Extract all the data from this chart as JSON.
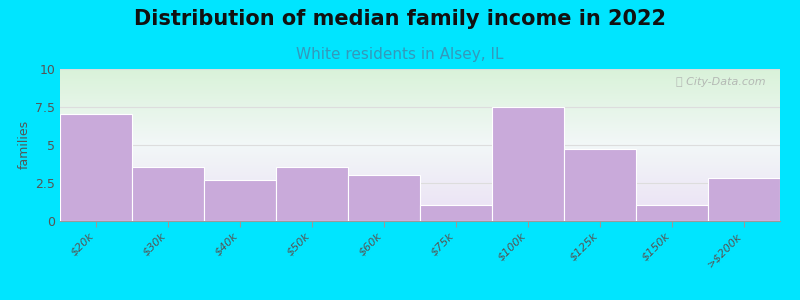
{
  "title": "Distribution of median family income in 2022",
  "subtitle": "White residents in Alsey, IL",
  "categories": [
    "$20k",
    "$30k",
    "$40k",
    "$50k",
    "$60k",
    "$75k",
    "$100k",
    "$125k",
    "$150k",
    ">$200k"
  ],
  "values": [
    7.0,
    3.5,
    2.7,
    3.5,
    3.0,
    1.0,
    7.5,
    4.7,
    1.0,
    2.8
  ],
  "bar_color": "#c9aada",
  "bar_edge_color": "#c9aada",
  "ylabel": "families",
  "ylim": [
    0,
    10
  ],
  "yticks": [
    0,
    2.5,
    5,
    7.5,
    10
  ],
  "background_color": "#00e5ff",
  "plot_bg_topleft": "#d8edd8",
  "plot_bg_topright": "#e8f0ec",
  "plot_bg_bottom": "#e8e0f0",
  "title_fontsize": 15,
  "subtitle_fontsize": 11,
  "subtitle_color": "#3399bb",
  "watermark": "Ⓢ City-Data.com"
}
